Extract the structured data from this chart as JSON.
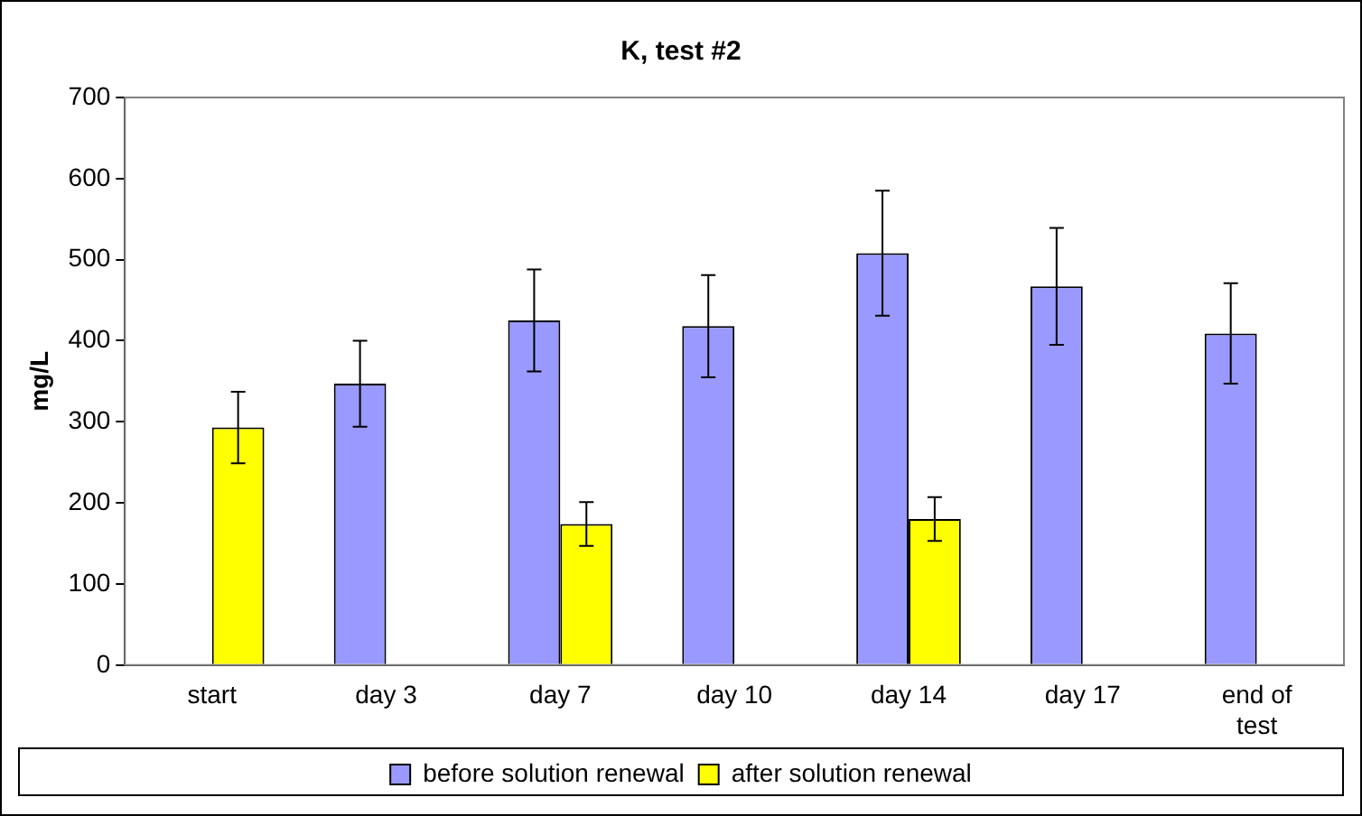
{
  "chart_data": {
    "type": "bar",
    "title": "K, test #2",
    "ylabel": "mg/L",
    "categories": [
      "start",
      "day 3",
      "day 7",
      "day 10",
      "day 14",
      "day 17",
      "end of test"
    ],
    "series": [
      {
        "name": "before solution renewal",
        "color": "#9999ff",
        "values": [
          null,
          347,
          425,
          418,
          508,
          467,
          409
        ],
        "errors": [
          null,
          53,
          63,
          63,
          77,
          72,
          62
        ]
      },
      {
        "name": "after solution renewal",
        "color": "#ffff00",
        "values": [
          293,
          null,
          174,
          null,
          180,
          null,
          null
        ],
        "errors": [
          44,
          null,
          27,
          null,
          27,
          null,
          null
        ]
      }
    ],
    "ylim": [
      0,
      700
    ],
    "yticks": [
      0,
      100,
      200,
      300,
      400,
      500,
      600,
      700
    ],
    "grid": false,
    "legend": "bottom"
  }
}
